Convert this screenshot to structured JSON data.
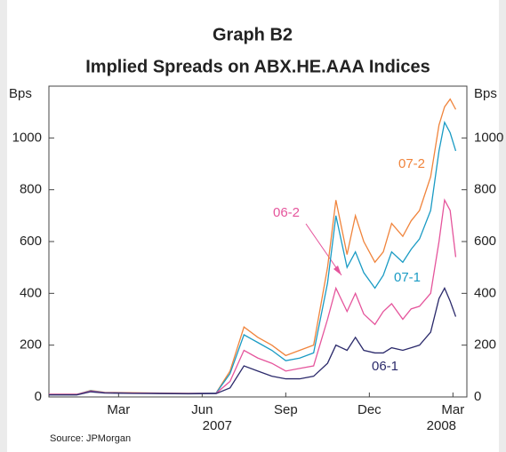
{
  "chart_data": {
    "type": "line",
    "title": "Graph B2",
    "subtitle": "Implied Spreads on ABX.HE.AAA Indices",
    "ylabel": "Bps",
    "y2label": "Bps",
    "source": "Source: JPMorgan",
    "year_labels": [
      "2007",
      "2008"
    ],
    "x": [
      0,
      1,
      1.5,
      2,
      3,
      4,
      5,
      6,
      6.5,
      7,
      7.5,
      8,
      8.5,
      9,
      9.5,
      10,
      10.3,
      10.7,
      11,
      11.3,
      11.7,
      12,
      12.3,
      12.7,
      13,
      13.3,
      13.7,
      14,
      14.2,
      14.4,
      14.6
    ],
    "xlim": [
      0,
      15
    ],
    "xticks": [
      {
        "value": 2.5,
        "label": "Mar"
      },
      {
        "value": 5.5,
        "label": "Jun"
      },
      {
        "value": 8.5,
        "label": "Sep"
      },
      {
        "value": 11.5,
        "label": "Dec"
      },
      {
        "value": 14.5,
        "label": "Mar"
      }
    ],
    "ylim": [
      0,
      1200
    ],
    "yticks": [
      0,
      200,
      400,
      600,
      800,
      1000
    ],
    "y2lim": [
      0,
      1200
    ],
    "y2ticks": [
      0,
      200,
      400,
      600,
      800,
      1000
    ],
    "series": [
      {
        "name": "07-2",
        "color": "#f0843c",
        "values": [
          10,
          10,
          25,
          18,
          16,
          15,
          14,
          15,
          100,
          270,
          230,
          200,
          160,
          180,
          200,
          500,
          760,
          550,
          700,
          600,
          520,
          560,
          670,
          620,
          680,
          720,
          850,
          1050,
          1120,
          1150,
          1110
        ]
      },
      {
        "name": "07-1",
        "color": "#1a9bc4",
        "values": [
          10,
          10,
          24,
          17,
          15,
          14,
          14,
          15,
          90,
          240,
          210,
          180,
          140,
          150,
          170,
          440,
          700,
          500,
          560,
          480,
          420,
          470,
          560,
          520,
          570,
          610,
          720,
          950,
          1060,
          1020,
          950
        ]
      },
      {
        "name": "06-2",
        "color": "#e5559c",
        "values": [
          10,
          10,
          22,
          16,
          15,
          14,
          13,
          14,
          60,
          180,
          150,
          130,
          100,
          110,
          120,
          300,
          420,
          330,
          400,
          320,
          280,
          330,
          360,
          300,
          340,
          350,
          400,
          600,
          760,
          720,
          540
        ]
      },
      {
        "name": "06-1",
        "color": "#2b2a6b",
        "values": [
          8,
          8,
          20,
          15,
          14,
          13,
          12,
          13,
          35,
          120,
          100,
          80,
          70,
          70,
          80,
          130,
          200,
          180,
          230,
          180,
          170,
          170,
          190,
          180,
          190,
          200,
          250,
          380,
          420,
          370,
          310
        ]
      }
    ]
  }
}
